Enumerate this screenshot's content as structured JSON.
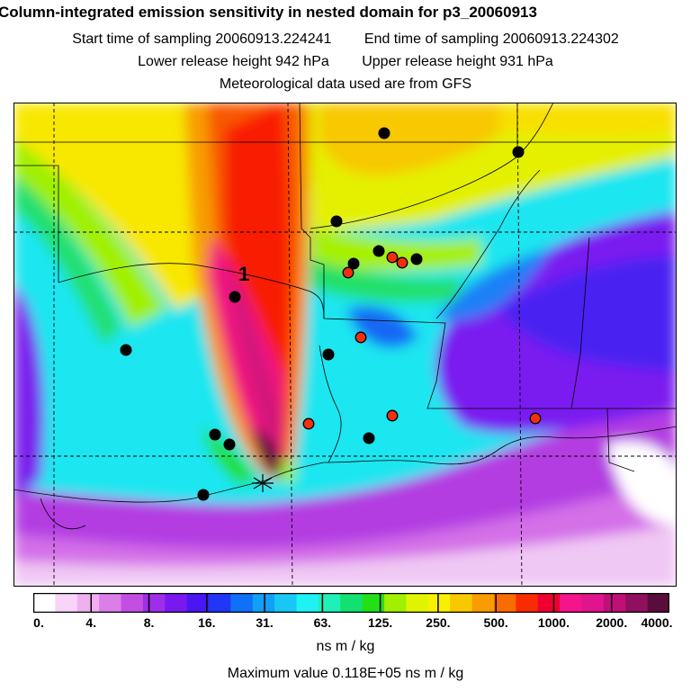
{
  "header": {
    "title": "Column-integrated emission sensitivity in nested domain for p3_20060913",
    "start_label": "Start time of sampling",
    "start_value": "20060913.224241",
    "end_label": "End time of sampling",
    "end_value": "20060913.224302",
    "lower_label": "Lower release height",
    "lower_value": "942 hPa",
    "upper_label": "Upper release height",
    "upper_value": "931 hPa",
    "met_line": "Meteorological data used are from GFS"
  },
  "map": {
    "release_label": "1",
    "stations_black": 13,
    "stations_red": 7
  },
  "colorbar": {
    "ticks": [
      "0.",
      "4.",
      "8.",
      "16.",
      "31.",
      "63.",
      "125.",
      "250.",
      "500.",
      "1000.",
      "2000.",
      "4000."
    ],
    "colors": [
      "#ffffff",
      "#f8d4f8",
      "#efb0f0",
      "#dc7ee8",
      "#c24fe2",
      "#9e2ee8",
      "#7a18f0",
      "#4a16f2",
      "#2038f6",
      "#1070f8",
      "#10a0f8",
      "#18c8f4",
      "#1ef2f2",
      "#1ef0b8",
      "#12e070",
      "#22e018",
      "#a0f000",
      "#e0f400",
      "#f8f000",
      "#f8c800",
      "#f89c00",
      "#f86c00",
      "#f82c00",
      "#f00030",
      "#f4148c",
      "#e0148c",
      "#c01078",
      "#901060",
      "#5a0c3c"
    ],
    "units": "ns m / kg"
  },
  "footer": {
    "max_label": "Maximum value",
    "max_value": "0.118E+05 ns m / kg"
  }
}
